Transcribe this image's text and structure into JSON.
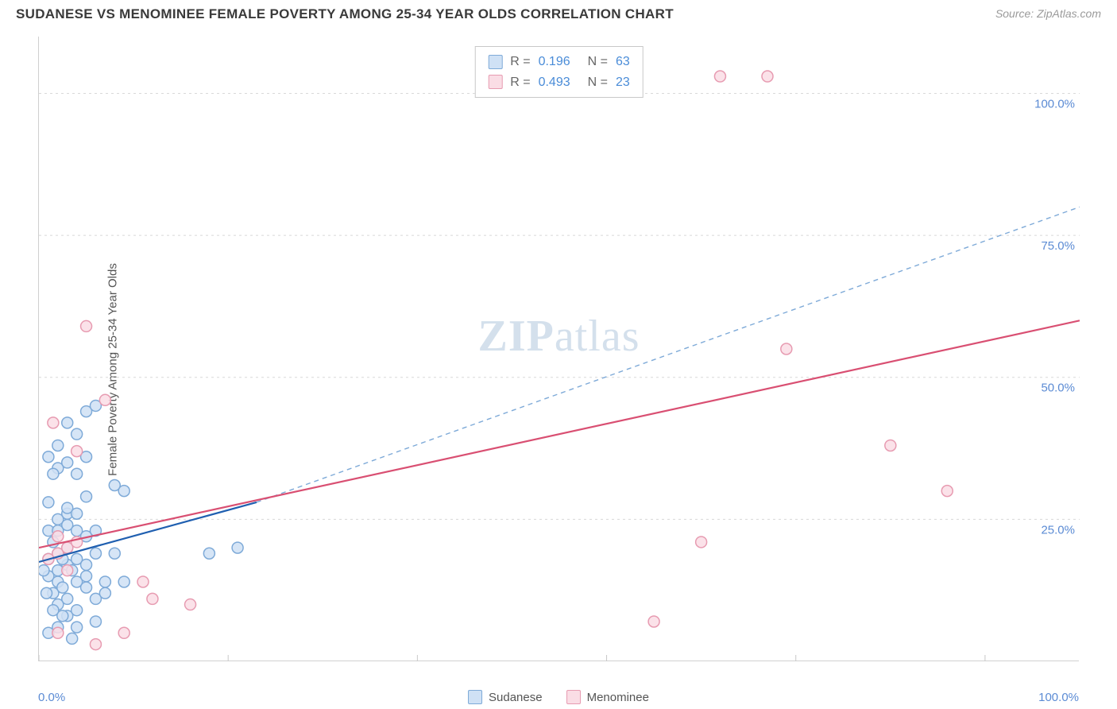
{
  "header": {
    "title": "SUDANESE VS MENOMINEE FEMALE POVERTY AMONG 25-34 YEAR OLDS CORRELATION CHART",
    "source_prefix": "Source: ",
    "source_name": "ZipAtlas.com"
  },
  "ylabel": "Female Poverty Among 25-34 Year Olds",
  "watermark_zip": "ZIP",
  "watermark_atlas": "atlas",
  "chart": {
    "type": "scatter",
    "xlim": [
      0,
      110
    ],
    "ylim": [
      0,
      110
    ],
    "x_ticks": [
      0,
      20,
      40,
      60,
      80,
      100
    ],
    "y_ticks": [
      25,
      50,
      75,
      100
    ],
    "x_tick_labels_shown": [
      "0.0%",
      "100.0%"
    ],
    "y_tick_labels": [
      "25.0%",
      "50.0%",
      "75.0%",
      "100.0%"
    ],
    "grid_color": "#d8d8d8",
    "tick_color": "#c8c8c8",
    "axis_label_color": "#5b8bd4",
    "background_color": "#ffffff",
    "marker_radius": 7,
    "marker_stroke_width": 1.5,
    "series": [
      {
        "name": "Sudanese",
        "fill": "#cfe1f5",
        "stroke": "#7eaad8",
        "r_value": "0.196",
        "n_value": "63",
        "regression_solid": {
          "x1": 0,
          "y1": 17.5,
          "x2": 23,
          "y2": 28,
          "stroke": "#1f5fb0",
          "width": 2.2
        },
        "regression_dashed": {
          "x1": 23,
          "y1": 28,
          "x2": 110,
          "y2": 80,
          "stroke": "#7eaad8",
          "width": 1.4,
          "dash": "6 5"
        },
        "points": [
          [
            1,
            15
          ],
          [
            1.5,
            12
          ],
          [
            2,
            14
          ],
          [
            2,
            16
          ],
          [
            2.5,
            13
          ],
          [
            3,
            17
          ],
          [
            3,
            11
          ],
          [
            3,
            26
          ],
          [
            1,
            18
          ],
          [
            2,
            19
          ],
          [
            3,
            20
          ],
          [
            4,
            18
          ],
          [
            1.5,
            21
          ],
          [
            2.5,
            18
          ],
          [
            3.5,
            16
          ],
          [
            4,
            14
          ],
          [
            2,
            25
          ],
          [
            3,
            27
          ],
          [
            1,
            28
          ],
          [
            4,
            26
          ],
          [
            5,
            17
          ],
          [
            6,
            19
          ],
          [
            5,
            13
          ],
          [
            7,
            14
          ],
          [
            3,
            42
          ],
          [
            4,
            40
          ],
          [
            5,
            44
          ],
          [
            6,
            45
          ],
          [
            2,
            38
          ],
          [
            1,
            36
          ],
          [
            8,
            31
          ],
          [
            5,
            29
          ],
          [
            2,
            10
          ],
          [
            3,
            8
          ],
          [
            4,
            9
          ],
          [
            6,
            11
          ],
          [
            2,
            6
          ],
          [
            1,
            5
          ],
          [
            5,
            15
          ],
          [
            7,
            12
          ],
          [
            9,
            14
          ],
          [
            8,
            19
          ],
          [
            18,
            19
          ],
          [
            21,
            20
          ],
          [
            9,
            30
          ],
          [
            3.5,
            4
          ],
          [
            4,
            6
          ],
          [
            6,
            7
          ],
          [
            2.5,
            8
          ],
          [
            1.5,
            9
          ],
          [
            0.8,
            12
          ],
          [
            0.5,
            16
          ],
          [
            1,
            23
          ],
          [
            2,
            23
          ],
          [
            3,
            24
          ],
          [
            4,
            23
          ],
          [
            5,
            22
          ],
          [
            6,
            23
          ],
          [
            2,
            34
          ],
          [
            1.5,
            33
          ],
          [
            3,
            35
          ],
          [
            4,
            33
          ],
          [
            5,
            36
          ]
        ]
      },
      {
        "name": "Menominee",
        "fill": "#fadde5",
        "stroke": "#e79bb1",
        "r_value": "0.493",
        "n_value": "23",
        "regression_solid": {
          "x1": 0,
          "y1": 20,
          "x2": 110,
          "y2": 60,
          "stroke": "#d94f72",
          "width": 2.2
        },
        "points": [
          [
            1,
            18
          ],
          [
            2,
            19
          ],
          [
            3,
            20
          ],
          [
            2,
            22
          ],
          [
            4,
            21
          ],
          [
            1.5,
            42
          ],
          [
            5,
            59
          ],
          [
            7,
            46
          ],
          [
            4,
            37
          ],
          [
            11,
            14
          ],
          [
            12,
            11
          ],
          [
            16,
            10
          ],
          [
            2,
            5
          ],
          [
            6,
            3
          ],
          [
            9,
            5
          ],
          [
            65,
            7
          ],
          [
            70,
            21
          ],
          [
            72,
            103
          ],
          [
            77,
            103
          ],
          [
            79,
            55
          ],
          [
            90,
            38
          ],
          [
            96,
            30
          ],
          [
            3,
            16
          ]
        ]
      }
    ]
  },
  "legend_bottom": [
    {
      "label": "Sudanese",
      "fill": "#cfe1f5",
      "stroke": "#7eaad8"
    },
    {
      "label": "Menominee",
      "fill": "#fadde5",
      "stroke": "#e79bb1"
    }
  ]
}
